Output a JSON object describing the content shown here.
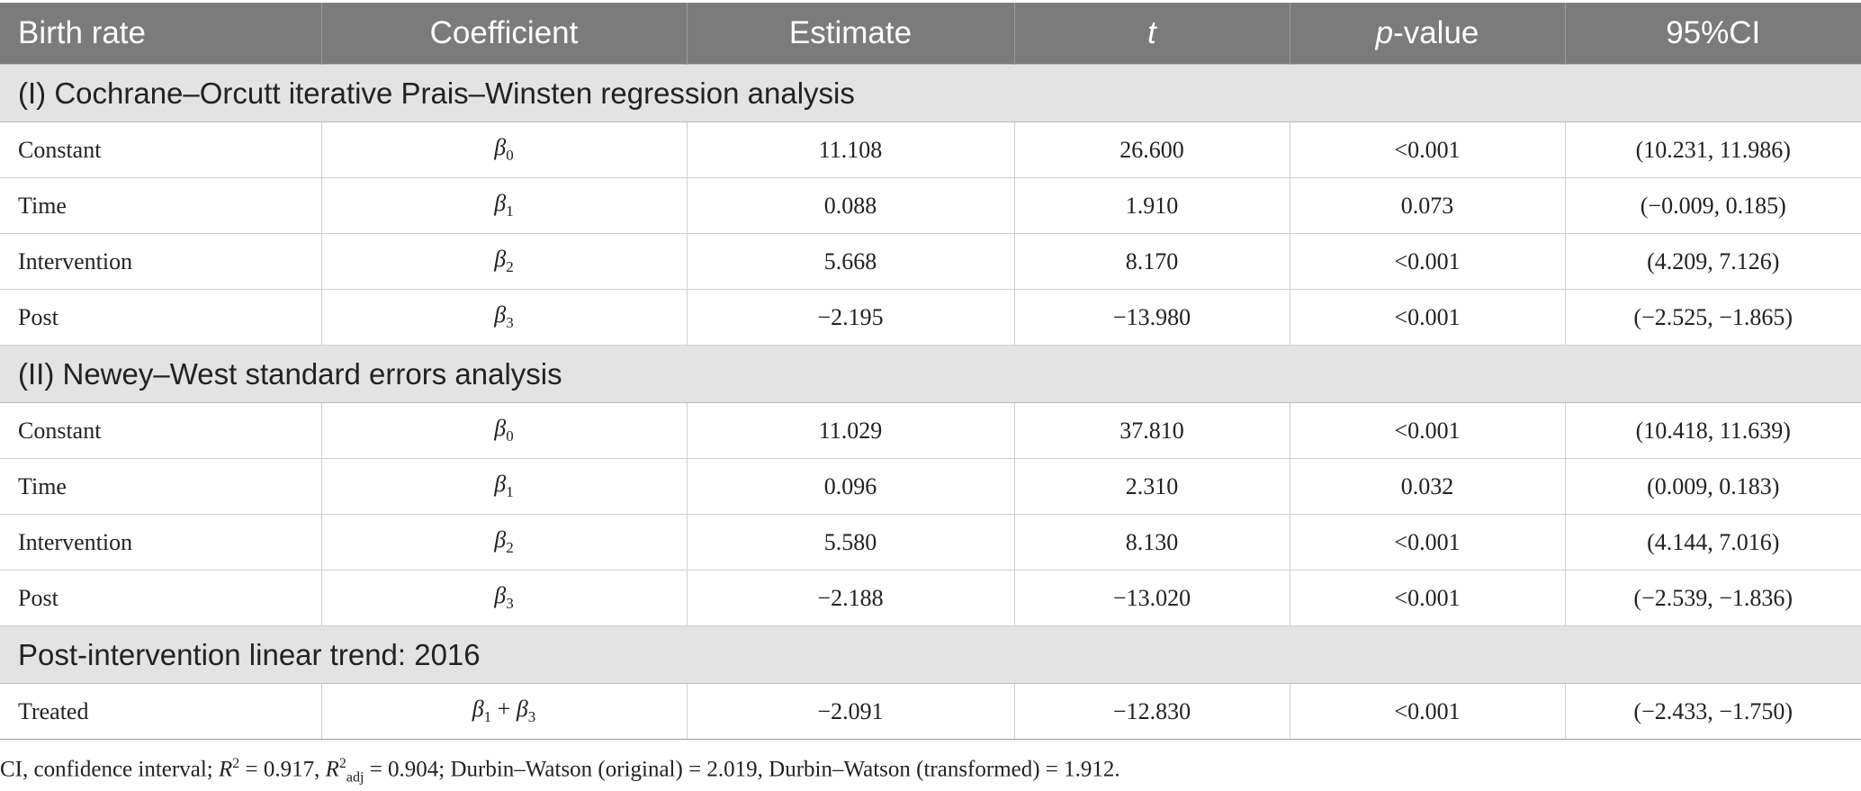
{
  "headers": [
    "Birth rate",
    "Coefficient",
    "Estimate",
    "t",
    "p",
    "-value",
    "95%CI"
  ],
  "sections": [
    {
      "title": "(I) Cochrane–Orcutt iterative Prais–Winsten regression analysis",
      "rows": [
        {
          "label": "Constant",
          "coef_symbol": "β",
          "coef_sub": "0",
          "estimate": "11.108",
          "t": "26.600",
          "p": "<0.001",
          "ci": "(10.231, 11.986)"
        },
        {
          "label": "Time",
          "coef_symbol": "β",
          "coef_sub": "1",
          "estimate": "0.088",
          "t": "1.910",
          "p": "0.073",
          "ci": "(−0.009, 0.185)"
        },
        {
          "label": "Intervention",
          "coef_symbol": "β",
          "coef_sub": "2",
          "estimate": "5.668",
          "t": "8.170",
          "p": "<0.001",
          "ci": "(4.209, 7.126)"
        },
        {
          "label": "Post",
          "coef_symbol": "β",
          "coef_sub": "3",
          "estimate": "−2.195",
          "t": "−13.980",
          "p": "<0.001",
          "ci": "(−2.525, −1.865)"
        }
      ]
    },
    {
      "title": "(II) Newey–West standard errors analysis",
      "rows": [
        {
          "label": "Constant",
          "coef_symbol": "β",
          "coef_sub": "0",
          "estimate": "11.029",
          "t": "37.810",
          "p": "<0.001",
          "ci": "(10.418, 11.639)"
        },
        {
          "label": "Time",
          "coef_symbol": "β",
          "coef_sub": "1",
          "estimate": "0.096",
          "t": "2.310",
          "p": "0.032",
          "ci": "(0.009, 0.183)"
        },
        {
          "label": "Intervention",
          "coef_symbol": "β",
          "coef_sub": "2",
          "estimate": "5.580",
          "t": "8.130",
          "p": "<0.001",
          "ci": "(4.144, 7.016)"
        },
        {
          "label": "Post",
          "coef_symbol": "β",
          "coef_sub": "3",
          "estimate": "−2.188",
          "t": "−13.020",
          "p": "<0.001",
          "ci": "(−2.539, −1.836)"
        }
      ]
    },
    {
      "title": "Post-intervention linear trend: 2016",
      "rows": [
        {
          "label": "Treated",
          "coef_symbol": "β",
          "coef_sub": "1",
          "coef_plus": " + ",
          "coef_symbol2": "β",
          "coef_sub2": "3",
          "estimate": "−2.091",
          "t": "−12.830",
          "p": "<0.001",
          "ci": "(−2.433, −1.750)"
        }
      ]
    }
  ],
  "footnote": {
    "part1": "CI, confidence interval; ",
    "r": "R",
    "sup2": "2",
    "part2": " = 0.917, ",
    "r_adj": "R",
    "sup2b": "2",
    "sub_adj": "adj",
    "part3": " = 0.904; Durbin–Watson (original) = 2.019, Durbin–Watson (transformed) = 1.912."
  }
}
